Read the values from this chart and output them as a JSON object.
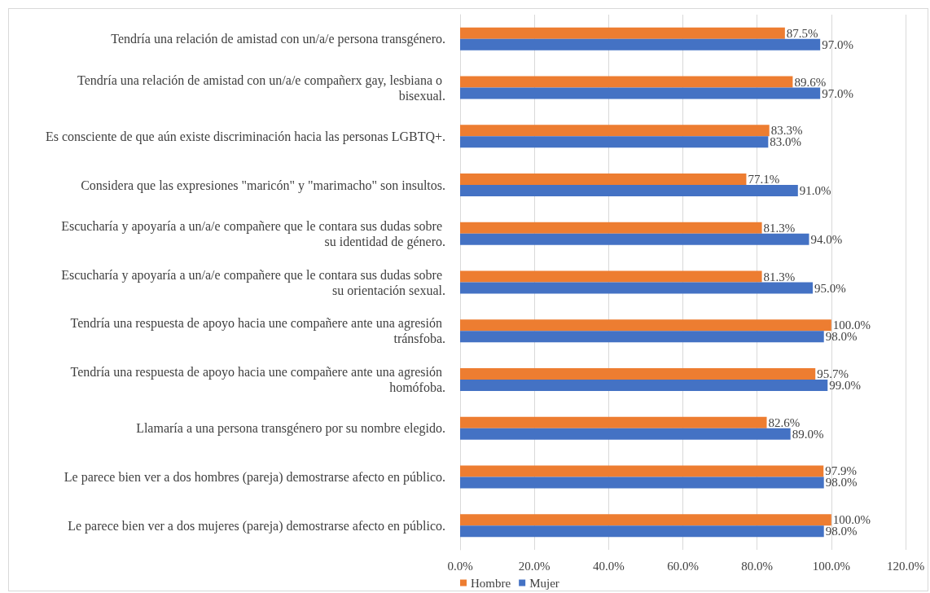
{
  "chart_data": {
    "type": "bar",
    "orientation": "horizontal",
    "categories": [
      "Tendría una relación de amistad con un/a/e persona transgénero.",
      "Tendría una relación de amistad con un/a/e compañerx gay, lesbiana o bisexual.",
      "Es consciente de que aún existe discriminación hacia las personas LGBTQ+.",
      "Considera que las expresiones \"maricón\" y \"marimacho\" son insultos.",
      "Escucharía y apoyaría a un/a/e compañere que le contara sus dudas sobre su identidad de género.",
      "Escucharía y apoyaría a un/a/e compañere que le contara sus dudas sobre su orientación sexual.",
      "Tendría una respuesta de apoyo hacia une compañere ante una agresión tránsfoba.",
      "Tendría una respuesta de apoyo hacia une compañere ante una agresión homófoba.",
      "Llamaría a una persona transgénero por su nombre elegido.",
      "Le parece bien ver a dos hombres (pareja) demostrarse afecto en público.",
      "Le parece bien ver a dos mujeres (pareja) demostrarse afecto en público."
    ],
    "series": [
      {
        "name": "Hombre",
        "color": "#ed7d31",
        "values": [
          87.5,
          89.6,
          83.3,
          77.1,
          81.3,
          81.3,
          100.0,
          95.7,
          82.6,
          97.9,
          100.0
        ],
        "value_labels": [
          "87.5%",
          "89.6%",
          "83.3%",
          "77.1%",
          "81.3%",
          "81.3%",
          "100.0%",
          "95.7%",
          "82.6%",
          "97.9%",
          "100.0%"
        ]
      },
      {
        "name": "Mujer",
        "color": "#4472c4",
        "values": [
          97.0,
          97.0,
          83.0,
          91.0,
          94.0,
          95.0,
          98.0,
          99.0,
          89.0,
          98.0,
          98.0
        ],
        "value_labels": [
          "97.0%",
          "97.0%",
          "83.0%",
          "91.0%",
          "94.0%",
          "95.0%",
          "98.0%",
          "99.0%",
          "89.0%",
          "98.0%",
          "98.0%"
        ]
      }
    ],
    "xlim": [
      0,
      120
    ],
    "xticks": [
      {
        "value": 0,
        "label": "0.0%"
      },
      {
        "value": 20,
        "label": "20.0%"
      },
      {
        "value": 40,
        "label": "40.0%"
      },
      {
        "value": 60,
        "label": "60.0%"
      },
      {
        "value": 80,
        "label": "80.0%"
      },
      {
        "value": 100,
        "label": "100.0%"
      },
      {
        "value": 120,
        "label": "120.0%"
      }
    ],
    "grid": "x",
    "legend": "bottom"
  }
}
